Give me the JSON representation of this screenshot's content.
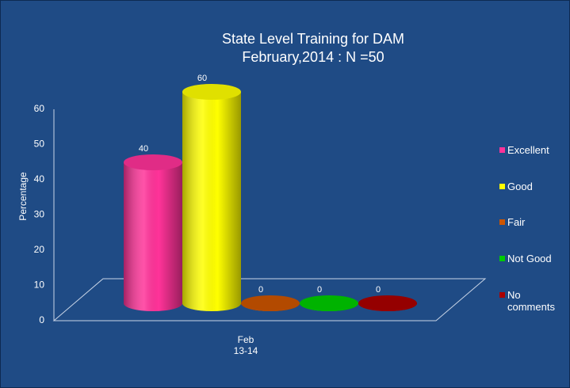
{
  "chart_data": {
    "type": "bar3d",
    "title": "State Level Training for DAM",
    "subtitle": "February,2014 : N =50",
    "y_label": "Percentage",
    "categories": [
      "Feb 13-14"
    ],
    "series": [
      {
        "name": "Excellent",
        "color": "#ff3399",
        "values": [
          40
        ]
      },
      {
        "name": "Good",
        "color": "#ffff00",
        "values": [
          60
        ]
      },
      {
        "name": "Fair",
        "color": "#cc5500",
        "values": [
          0
        ]
      },
      {
        "name": "Not Good",
        "color": "#00cc00",
        "values": [
          0
        ]
      },
      {
        "name": "No comments",
        "color": "#aa0000",
        "values": [
          0
        ]
      }
    ],
    "ylim": [
      0,
      60
    ],
    "yticks": [
      0,
      10,
      20,
      30,
      40,
      50,
      60
    ],
    "grid": false,
    "legend": "right"
  }
}
